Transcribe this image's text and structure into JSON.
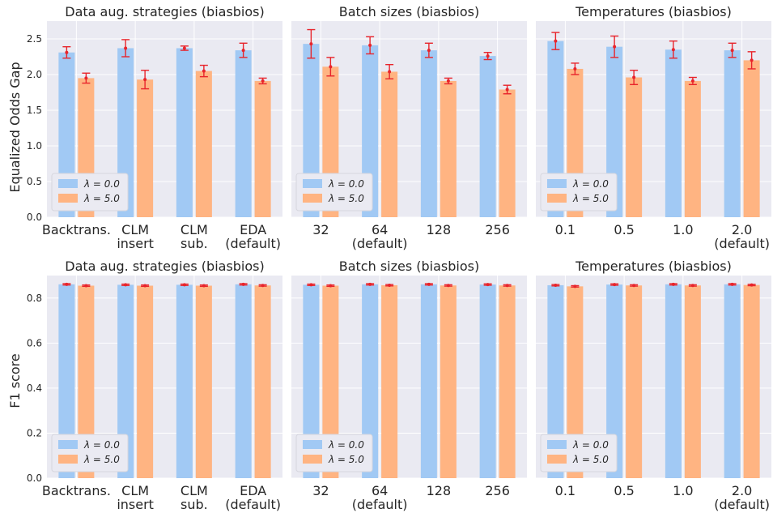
{
  "colors": {
    "lambda0": "#a1c9f4",
    "lambda5": "#ffb482",
    "error": "#e8242b"
  },
  "legend": [
    "λ = 0.0",
    "λ = 5.0"
  ],
  "rows": [
    {
      "ylabel": "Equalized Odds Gap",
      "ylim": [
        0,
        2.75
      ],
      "yticks": [
        0.0,
        0.5,
        1.0,
        1.5,
        2.0,
        2.5
      ]
    },
    {
      "ylabel": "F1 score",
      "ylim": [
        0,
        0.9
      ],
      "yticks": [
        0.0,
        0.2,
        0.4,
        0.6,
        0.8
      ]
    }
  ],
  "chart_data": [
    {
      "type": "bar",
      "row": 0,
      "col": 0,
      "title": "Data aug. strategies (biasbios)",
      "categories": [
        "Backtrans.",
        "CLM\ninsert",
        "CLM\nsub.",
        "EDA\n(default)"
      ],
      "series": [
        {
          "name": "λ = 0.0",
          "values": [
            2.31,
            2.37,
            2.37,
            2.34
          ],
          "errors": [
            0.08,
            0.12,
            0.03,
            0.1
          ]
        },
        {
          "name": "λ = 5.0",
          "values": [
            1.95,
            1.93,
            2.05,
            1.91
          ],
          "errors": [
            0.07,
            0.13,
            0.08,
            0.04
          ]
        }
      ]
    },
    {
      "type": "bar",
      "row": 0,
      "col": 1,
      "title": "Batch sizes (biasbios)",
      "categories": [
        "32",
        "64\n(default)",
        "128",
        "256"
      ],
      "series": [
        {
          "name": "λ = 0.0",
          "values": [
            2.43,
            2.41,
            2.34,
            2.26
          ],
          "errors": [
            0.2,
            0.12,
            0.1,
            0.05
          ]
        },
        {
          "name": "λ = 5.0",
          "values": [
            2.11,
            2.04,
            1.91,
            1.79
          ],
          "errors": [
            0.13,
            0.1,
            0.04,
            0.06
          ]
        }
      ]
    },
    {
      "type": "bar",
      "row": 0,
      "col": 2,
      "title": "Temperatures (biasbios)",
      "categories": [
        "0.1",
        "0.5",
        "1.0",
        "2.0\n(default)"
      ],
      "series": [
        {
          "name": "λ = 0.0",
          "values": [
            2.47,
            2.39,
            2.35,
            2.34
          ],
          "errors": [
            0.12,
            0.15,
            0.12,
            0.1
          ]
        },
        {
          "name": "λ = 5.0",
          "values": [
            2.08,
            1.96,
            1.91,
            2.2
          ],
          "errors": [
            0.08,
            0.1,
            0.05,
            0.12
          ]
        }
      ]
    },
    {
      "type": "bar",
      "row": 1,
      "col": 0,
      "title": "Data aug. strategies (biasbios)",
      "categories": [
        "Backtrans.",
        "CLM\ninsert",
        "CLM\nsub.",
        "EDA\n(default)"
      ],
      "series": [
        {
          "name": "λ = 0.0",
          "values": [
            0.861,
            0.859,
            0.859,
            0.861
          ],
          "errors": [
            0.003,
            0.003,
            0.003,
            0.003
          ]
        },
        {
          "name": "λ = 5.0",
          "values": [
            0.855,
            0.855,
            0.855,
            0.856
          ],
          "errors": [
            0.003,
            0.003,
            0.003,
            0.003
          ]
        }
      ]
    },
    {
      "type": "bar",
      "row": 1,
      "col": 1,
      "title": "Batch sizes (biasbios)",
      "categories": [
        "32",
        "64\n(default)",
        "128",
        "256"
      ],
      "series": [
        {
          "name": "λ = 0.0",
          "values": [
            0.859,
            0.861,
            0.861,
            0.86
          ],
          "errors": [
            0.003,
            0.003,
            0.003,
            0.003
          ]
        },
        {
          "name": "λ = 5.0",
          "values": [
            0.855,
            0.857,
            0.856,
            0.856
          ],
          "errors": [
            0.003,
            0.003,
            0.003,
            0.003
          ]
        }
      ]
    },
    {
      "type": "bar",
      "row": 1,
      "col": 2,
      "title": "Temperatures (biasbios)",
      "categories": [
        "0.1",
        "0.5",
        "1.0",
        "2.0\n(default)"
      ],
      "series": [
        {
          "name": "λ = 0.0",
          "values": [
            0.857,
            0.86,
            0.861,
            0.861
          ],
          "errors": [
            0.003,
            0.003,
            0.003,
            0.003
          ]
        },
        {
          "name": "λ = 5.0",
          "values": [
            0.852,
            0.856,
            0.856,
            0.858
          ],
          "errors": [
            0.003,
            0.003,
            0.003,
            0.003
          ]
        }
      ]
    }
  ]
}
